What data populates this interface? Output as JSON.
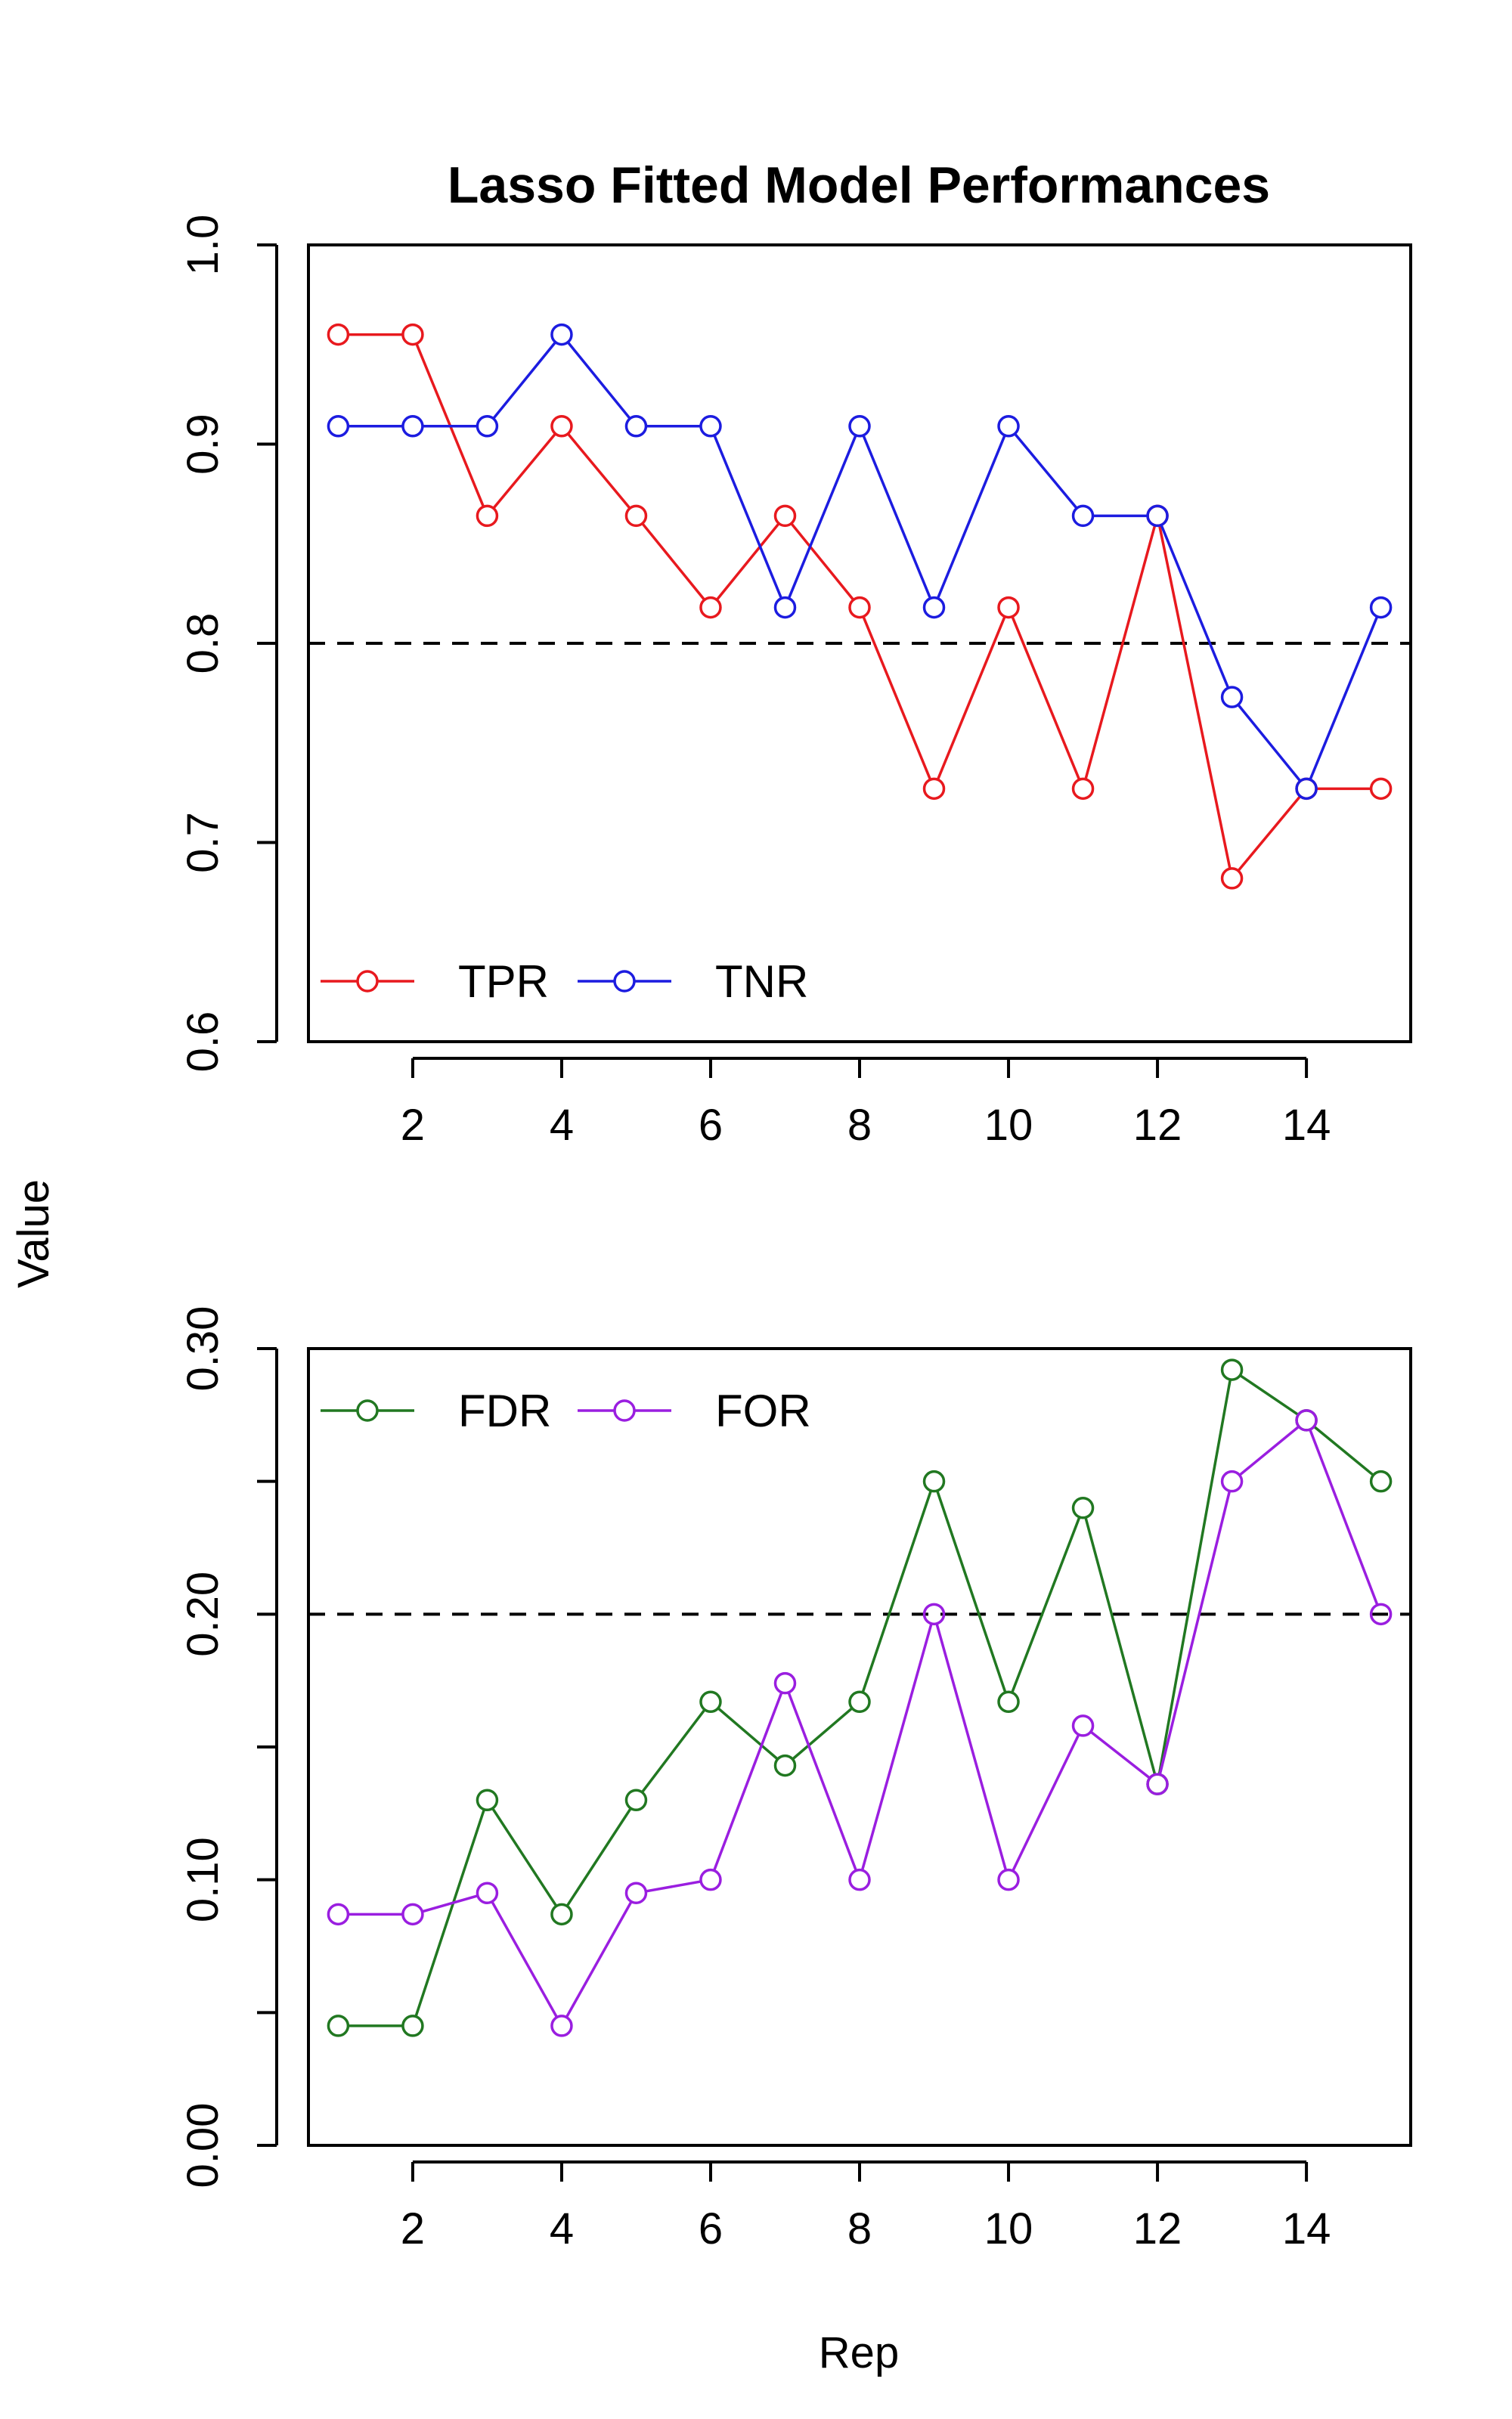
{
  "chart_data": [
    {
      "type": "line",
      "title": "Lasso Fitted Model Performances",
      "xlabel": "",
      "ylabel": "Value",
      "xlim": [
        0.6,
        15.4
      ],
      "ylim": [
        0.6,
        1.0
      ],
      "x_ticks": [
        2,
        4,
        6,
        8,
        10,
        12,
        14
      ],
      "x_tick_labels": [
        "2",
        "4",
        "6",
        "8",
        "10",
        "12",
        "14"
      ],
      "y_ticks": [
        0.6,
        0.7,
        0.8,
        0.9,
        1.0
      ],
      "y_tick_labels": [
        "0.6",
        "0.7",
        "0.8",
        "0.9",
        "1.0"
      ],
      "reference_line": 0.8,
      "grid": false,
      "legend_position": "bottom-left",
      "x": [
        1,
        2,
        3,
        4,
        5,
        6,
        7,
        8,
        9,
        10,
        11,
        12,
        13,
        14,
        15
      ],
      "series": [
        {
          "name": "TPR",
          "color": "#e8191e",
          "values": [
            0.955,
            0.955,
            0.864,
            0.909,
            0.864,
            0.818,
            0.864,
            0.818,
            0.727,
            0.818,
            0.727,
            0.864,
            0.682,
            0.727,
            0.727
          ]
        },
        {
          "name": "TNR",
          "color": "#1c1ce0",
          "values": [
            0.909,
            0.909,
            0.909,
            0.955,
            0.909,
            0.909,
            0.818,
            0.909,
            0.818,
            0.909,
            0.864,
            0.864,
            0.773,
            0.727,
            0.818
          ]
        }
      ]
    },
    {
      "type": "line",
      "title": "",
      "xlabel": "Rep",
      "ylabel": "Value",
      "xlim": [
        0.6,
        15.4
      ],
      "ylim": [
        0.0,
        0.3
      ],
      "x_ticks": [
        2,
        4,
        6,
        8,
        10,
        12,
        14
      ],
      "x_tick_labels": [
        "2",
        "4",
        "6",
        "8",
        "10",
        "12",
        "14"
      ],
      "y_ticks": [
        0.0,
        0.05,
        0.1,
        0.15,
        0.2,
        0.25,
        0.3
      ],
      "y_tick_labels": [
        "0.00",
        "",
        "0.10",
        "",
        "0.20",
        "",
        "0.30"
      ],
      "reference_line": 0.2,
      "grid": false,
      "legend_position": "top-left",
      "x": [
        1,
        2,
        3,
        4,
        5,
        6,
        7,
        8,
        9,
        10,
        11,
        12,
        13,
        14,
        15
      ],
      "series": [
        {
          "name": "FDR",
          "color": "#217821",
          "values": [
            0.045,
            0.045,
            0.13,
            0.087,
            0.13,
            0.167,
            0.143,
            0.167,
            0.25,
            0.167,
            0.24,
            0.136,
            0.292,
            0.273,
            0.25
          ]
        },
        {
          "name": "FOR",
          "color": "#9a1ee0",
          "values": [
            0.087,
            0.087,
            0.095,
            0.045,
            0.095,
            0.1,
            0.174,
            0.1,
            0.2,
            0.1,
            0.158,
            0.136,
            0.25,
            0.273,
            0.2
          ]
        }
      ]
    }
  ]
}
